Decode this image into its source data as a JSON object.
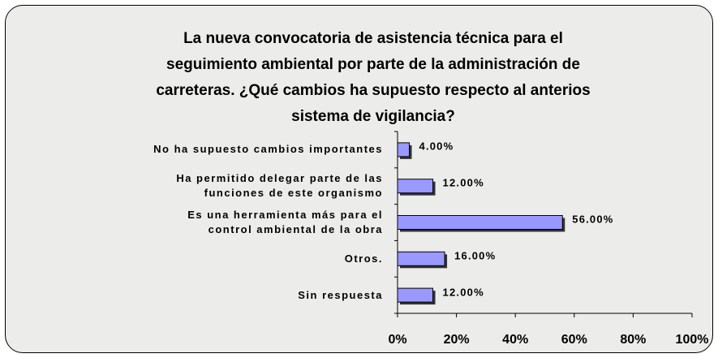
{
  "chart_data": {
    "type": "barh",
    "title": "La nueva convocatoria de asistencia técnica para el\nseguimiento ambiental por parte de la administración de\ncarreteras. ¿Qué cambios ha supuesto respecto al anterios\nsistema de vigilancia?",
    "categories": [
      "No ha supuesto cambios importantes",
      "Ha permitido delegar parte de las\nfunciones de este organismo",
      "Es una herramienta más para el\ncontrol ambiental de la obra",
      "Otros.",
      "Sin respuesta"
    ],
    "values": [
      4,
      12,
      56,
      16,
      12
    ],
    "value_labels": [
      "4.00%",
      "12.00%",
      "56.00%",
      "16.00%",
      "12.00%"
    ],
    "color": "#9999ff",
    "xlim": [
      0,
      100
    ],
    "xticks": [
      {
        "value": 0,
        "label": "0%"
      },
      {
        "value": 20,
        "label": "20%"
      },
      {
        "value": 40,
        "label": "40%"
      },
      {
        "value": 60,
        "label": "60%"
      },
      {
        "value": 80,
        "label": "80%"
      },
      {
        "value": 100,
        "label": "100%"
      }
    ]
  }
}
